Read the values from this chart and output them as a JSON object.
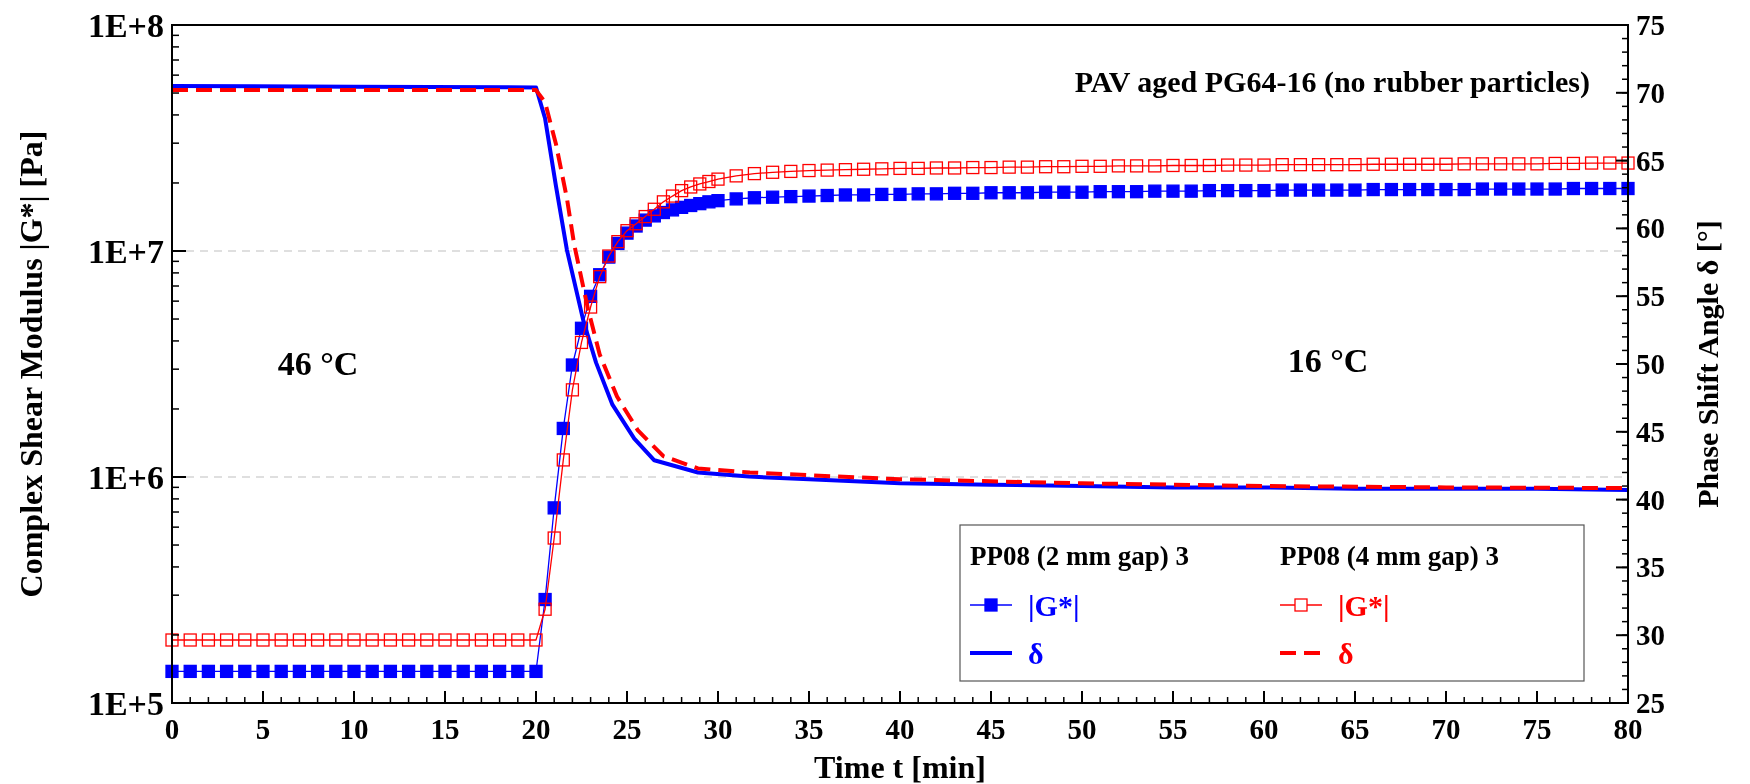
{
  "chart_data": {
    "type": "line",
    "title": "PAV aged PG64-16 (no rubber particles)",
    "xlabel": "Time t [min]",
    "ylabel": "Complex Shear Modulus |G*| [Pa]",
    "y2label": "Phase Shift Angle δ [°]",
    "annotations": [
      "46 °C",
      "16 °C",
      "PP08 (2 mm gap) 3",
      "PP08 (4 mm gap) 3"
    ],
    "log": "y",
    "grid": "y",
    "legend": "bottom right",
    "xlim": [
      0,
      80
    ],
    "xticks": [
      0,
      5,
      10,
      15,
      20,
      25,
      30,
      35,
      40,
      45,
      50,
      55,
      60,
      65,
      70,
      75,
      80
    ],
    "ylim": [
      100000,
      100000000
    ],
    "yticks": [
      {
        "value": 100000,
        "label": "1E+5"
      },
      {
        "value": 1000000,
        "label": "1E+6"
      },
      {
        "value": 10000000,
        "label": "1E+7"
      },
      {
        "value": 100000000,
        "label": "1E+8"
      }
    ],
    "y2lim": [
      25,
      75
    ],
    "y2ticks": [
      25,
      30,
      35,
      40,
      45,
      50,
      55,
      60,
      65,
      70,
      75
    ],
    "series": [
      {
        "name": "|G*|",
        "color": "#0000ff",
        "marker": "square",
        "line_style": "solid",
        "x": [
          0,
          1,
          2,
          3,
          4,
          5,
          6,
          7,
          8,
          9,
          10,
          11,
          12,
          13,
          14,
          15,
          16,
          17,
          18,
          19,
          20,
          20.5,
          21,
          21.5,
          22,
          22.5,
          23,
          23.5,
          24,
          24.5,
          25,
          25.5,
          26,
          26.5,
          27,
          27.5,
          28,
          28.5,
          29,
          29.5,
          30,
          31,
          32,
          33,
          34,
          35,
          36,
          37,
          38,
          39,
          40,
          41,
          42,
          43,
          44,
          45,
          46,
          47,
          48,
          49,
          50,
          51,
          52,
          53,
          54,
          55,
          56,
          57,
          58,
          59,
          60,
          61,
          62,
          63,
          64,
          65,
          66,
          67,
          68,
          69,
          70,
          71,
          72,
          73,
          74,
          75,
          76,
          77,
          78,
          79,
          80
        ],
        "values": [
          138000,
          138000,
          138000,
          138000,
          138000,
          138000,
          138000,
          138000,
          138000,
          138000,
          138000,
          138000,
          138000,
          138000,
          138000,
          138000,
          138000,
          138000,
          138000,
          138000,
          138000,
          287000,
          730000,
          1640000,
          3130000,
          4550000,
          6300000,
          7850000,
          9400000,
          10800000,
          12000000,
          12900000,
          13700000,
          14300000,
          14800000,
          15200000,
          15600000,
          15900000,
          16200000,
          16500000,
          16700000,
          17000000,
          17200000,
          17300000,
          17400000,
          17500000,
          17600000,
          17700000,
          17700000,
          17800000,
          17800000,
          17900000,
          17900000,
          18000000,
          18000000,
          18100000,
          18100000,
          18100000,
          18200000,
          18200000,
          18200000,
          18300000,
          18300000,
          18300000,
          18400000,
          18400000,
          18400000,
          18500000,
          18500000,
          18500000,
          18500000,
          18600000,
          18600000,
          18600000,
          18600000,
          18600000,
          18700000,
          18700000,
          18700000,
          18700000,
          18700000,
          18700000,
          18800000,
          18800000,
          18800000,
          18800000,
          18800000,
          18900000,
          18900000,
          18900000,
          18900000
        ]
      },
      {
        "name": "δ",
        "color": "#0000ff",
        "axis": "y2",
        "marker": "none",
        "line_style": "solid",
        "x": [
          0,
          10,
          20,
          20.5,
          21.1,
          21.7,
          22.6,
          23.3,
          24.2,
          25.4,
          26.5,
          28.9,
          31.7,
          35,
          40,
          45,
          50,
          55,
          60,
          65,
          70,
          75,
          80
        ],
        "values": [
          70.5,
          70.45,
          70.4,
          68.1,
          63.1,
          58.4,
          53.2,
          50.1,
          47.0,
          44.5,
          42.9,
          42.0,
          41.7,
          41.5,
          41.2,
          41.1,
          41.0,
          40.9,
          40.9,
          40.8,
          40.8,
          40.8,
          40.7
        ]
      },
      {
        "name": "|G*|",
        "color": "#ff0000",
        "marker": "square",
        "line_style": "solid",
        "x": [
          0,
          1,
          2,
          3,
          4,
          5,
          6,
          7,
          8,
          9,
          10,
          11,
          12,
          13,
          14,
          15,
          16,
          17,
          18,
          19,
          20,
          20.5,
          21,
          21.5,
          22,
          22.5,
          23,
          23.5,
          24,
          24.5,
          25,
          25.5,
          26,
          26.5,
          27,
          27.5,
          28,
          28.5,
          29,
          29.5,
          30,
          31,
          32,
          33,
          34,
          35,
          36,
          37,
          38,
          39,
          40,
          41,
          42,
          43,
          44,
          45,
          46,
          47,
          48,
          49,
          50,
          51,
          52,
          53,
          54,
          55,
          56,
          57,
          58,
          59,
          60,
          61,
          62,
          63,
          64,
          65,
          66,
          67,
          68,
          69,
          70,
          71,
          72,
          73,
          74,
          75,
          76,
          77,
          78,
          79,
          80
        ],
        "values": [
          190000,
          190000,
          190000,
          190000,
          190000,
          190000,
          190000,
          190000,
          190000,
          190000,
          190000,
          190000,
          190000,
          190000,
          190000,
          190000,
          190000,
          190000,
          190000,
          190000,
          190000,
          260000,
          537000,
          1190000,
          2430000,
          3940000,
          5650000,
          7700000,
          9500000,
          11000000,
          12300000,
          13200000,
          14200000,
          15300000,
          16500000,
          17500000,
          18500000,
          19200000,
          19800000,
          20300000,
          20800000,
          21500000,
          22000000,
          22300000,
          22500000,
          22700000,
          22800000,
          22900000,
          23000000,
          23100000,
          23200000,
          23200000,
          23300000,
          23300000,
          23400000,
          23400000,
          23500000,
          23500000,
          23600000,
          23600000,
          23700000,
          23700000,
          23800000,
          23800000,
          23800000,
          23900000,
          23900000,
          23900000,
          24000000,
          24000000,
          24000000,
          24100000,
          24100000,
          24100000,
          24100000,
          24100000,
          24200000,
          24200000,
          24200000,
          24200000,
          24200000,
          24300000,
          24300000,
          24300000,
          24300000,
          24300000,
          24400000,
          24400000,
          24500000,
          24500000,
          24500000
        ]
      },
      {
        "name": "δ",
        "color": "#ff0000",
        "axis": "y2",
        "marker": "none",
        "line_style": "dashed",
        "x": [
          0,
          10,
          20,
          20.5,
          21.1,
          21.7,
          22.1,
          22.85,
          23.5,
          24.45,
          25.6,
          27.0,
          28.9,
          31.75,
          35,
          40,
          50,
          60,
          70,
          80
        ],
        "values": [
          70.2,
          70.2,
          70.2,
          69.3,
          66.2,
          62.2,
          58.8,
          54.1,
          50.7,
          47.6,
          45.1,
          43.2,
          42.3,
          42.0,
          41.8,
          41.5,
          41.2,
          41.0,
          40.9,
          40.85
        ]
      }
    ]
  }
}
